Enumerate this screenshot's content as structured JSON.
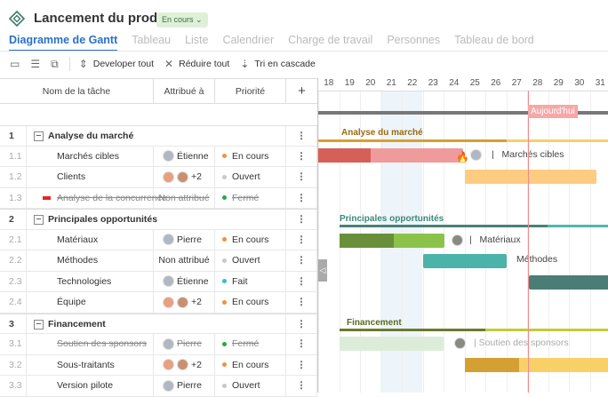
{
  "header": {
    "title": "Lancement du produit",
    "status": "En cours"
  },
  "tabs": [
    "Diagramme de Gantt",
    "Tableau",
    "Liste",
    "Calendrier",
    "Charge de travail",
    "Personnes",
    "Tableau de bord"
  ],
  "toolbar": {
    "expand": "Developer tout",
    "collapse": "Réduire tout",
    "sort": "Tri en cascade"
  },
  "columns": {
    "name": "Nom de la tâche",
    "assigned": "Attribué à",
    "priority": "Priorité",
    "add": "+"
  },
  "days": [
    "18",
    "19",
    "20",
    "21",
    "22",
    "23",
    "24",
    "25",
    "26",
    "27",
    "28",
    "29",
    "30",
    "31"
  ],
  "today": "Aujourd'hui",
  "rows": [
    {
      "num": "1",
      "name": "Analyse du marché",
      "group": true
    },
    {
      "num": "1.1",
      "name": "Marchés cibles",
      "assignee": "Étienne",
      "avatars": 1,
      "priority": "En cours",
      "color": "#f0913a"
    },
    {
      "num": "1.2",
      "name": "Clients",
      "assignee": "+2",
      "avatars": 2,
      "priority": "Ouvert",
      "color": "#c8c8c8"
    },
    {
      "num": "1.3",
      "name": "Analyse de la concurrence",
      "assignee": "Non attribué",
      "avatars": 0,
      "priority": "Fermé",
      "color": "#2aa84a",
      "done": true,
      "flag": true
    },
    {
      "num": "2",
      "name": "Principales opportunités",
      "group": true
    },
    {
      "num": "2.1",
      "name": "Matériaux",
      "assignee": "Pierre",
      "avatars": 1,
      "priority": "En cours",
      "color": "#f0913a"
    },
    {
      "num": "2.2",
      "name": "Méthodes",
      "assignee": "Non attribué",
      "avatars": 0,
      "priority": "Ouvert",
      "color": "#c8c8c8"
    },
    {
      "num": "2.3",
      "name": "Technologies",
      "assignee": "Étienne",
      "avatars": 1,
      "priority": "Fait",
      "color": "#3bb8d8"
    },
    {
      "num": "2.4",
      "name": "Équipe",
      "assignee": "+2",
      "avatars": 2,
      "priority": "En cours",
      "color": "#f0913a"
    },
    {
      "num": "3",
      "name": "Financement",
      "group": true
    },
    {
      "num": "3.1",
      "name": "Soutien des sponsors",
      "assignee": "Pierre",
      "avatars": 1,
      "priority": "Fermé",
      "color": "#2aa84a",
      "done": true
    },
    {
      "num": "3.2",
      "name": "Sous-traitants",
      "assignee": "+2",
      "avatars": 2,
      "priority": "En cours",
      "color": "#f0913a"
    },
    {
      "num": "3.3",
      "name": "Version pilote",
      "assignee": "Pierre",
      "avatars": 1,
      "priority": "Ouvert",
      "color": "#c8c8c8"
    }
  ],
  "gantt": {
    "g1": "Analyse du marché",
    "t11": "Marchés cibles",
    "g2": "Principales opportunités",
    "t21": "Matériaux",
    "t22": "Méthodes",
    "g3": "Financement",
    "t31": "Soutien des sponsors"
  }
}
